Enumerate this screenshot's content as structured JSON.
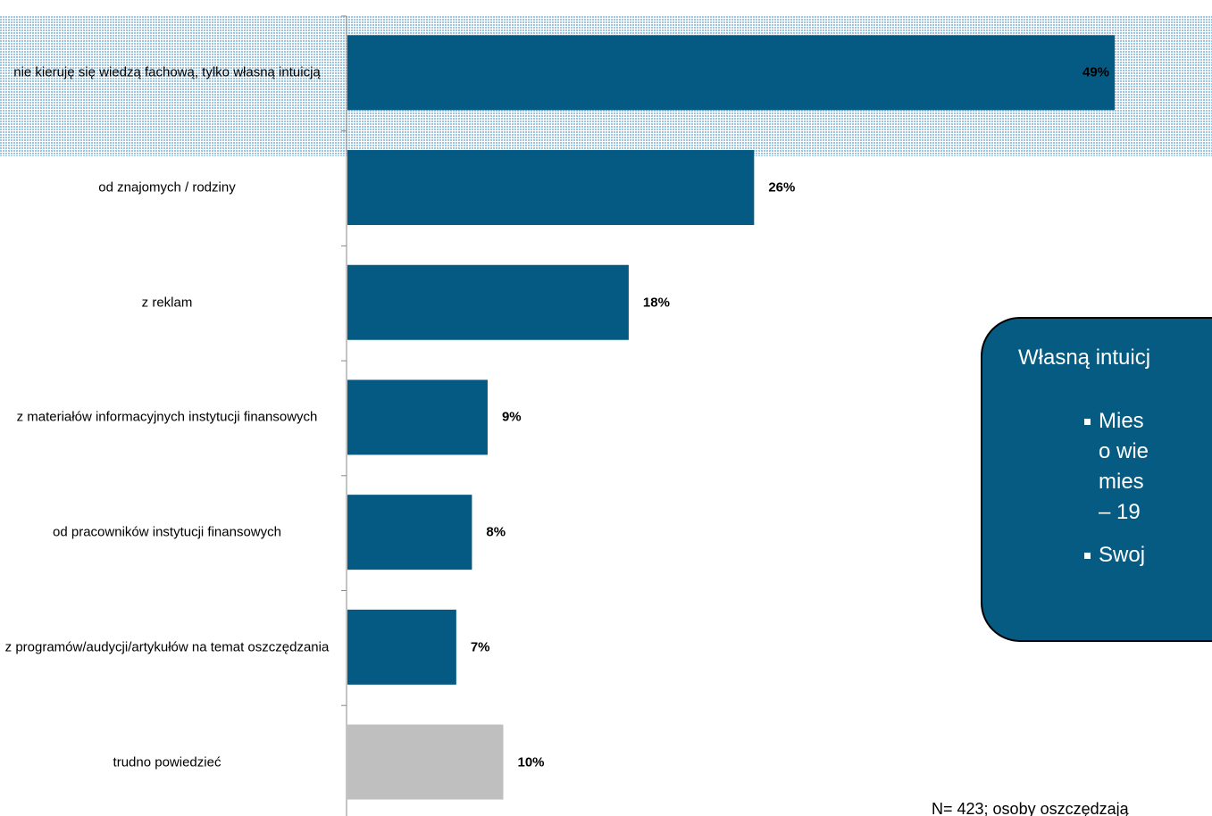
{
  "chart_data": {
    "type": "bar",
    "orientation": "horizontal",
    "categories": [
      "nie kieruję się wiedzą fachową, tylko własną intuicją",
      "od znajomych / rodziny",
      "z reklam",
      "z materiałów informacyjnych instytucji finansowych",
      "od pracowników instytucji finansowych",
      "z programów/audycji/artykułów na temat oszczędzania",
      "trudno powiedzieć"
    ],
    "values": [
      49,
      26,
      18,
      9,
      8,
      7,
      10
    ],
    "value_labels": [
      "49%",
      "26%",
      "18%",
      "9%",
      "8%",
      "7%",
      "10%"
    ],
    "colors": [
      "#045a82",
      "#045a82",
      "#045a82",
      "#045a82",
      "#045a82",
      "#045a82",
      "#bfbfbf"
    ]
  },
  "callout": {
    "heading": "Własną intuicj",
    "lines": [
      "Mies",
      "o wie",
      "mies",
      "– 19",
      "Swoj"
    ]
  },
  "footnote": "N= 423; osoby oszczędzają"
}
